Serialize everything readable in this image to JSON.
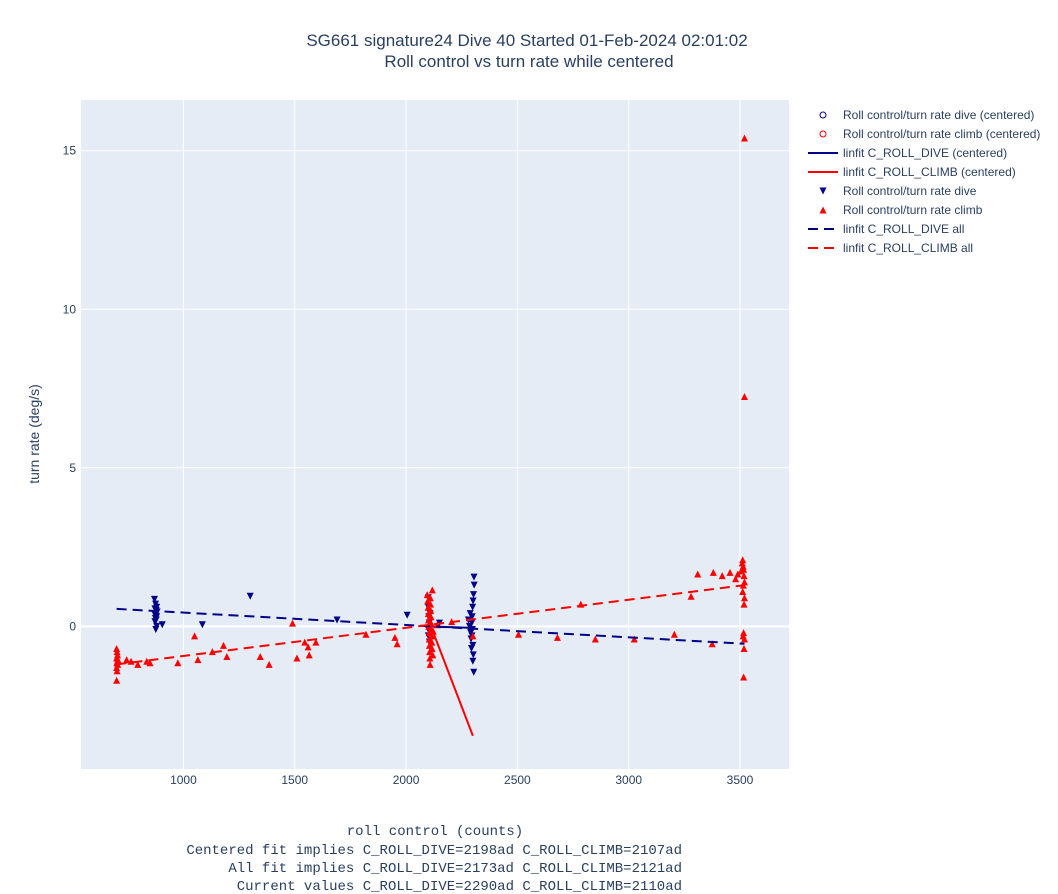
{
  "chart_data": {
    "type": "scatter",
    "title": "SG661 signature24 Dive 40 Started 01-Feb-2024 02:01:02",
    "subtitle": "Roll control vs turn rate while centered",
    "xlabel": "roll control (counts)",
    "xlabel_notes": [
      "Centered fit implies C_ROLL_DIVE=2198ad C_ROLL_CLIMB=2107ad",
      "All fit implies C_ROLL_DIVE=2173ad C_ROLL_CLIMB=2121ad",
      "Current values C_ROLL_DIVE=2290ad C_ROLL_CLIMB=2110ad"
    ],
    "ylabel": "turn rate (deg/s)",
    "xlim": [
      540,
      3720
    ],
    "ylim": [
      -4.5,
      16.6
    ],
    "xticks": [
      1000,
      1500,
      2000,
      2500,
      3000,
      3500
    ],
    "yticks": [
      0,
      5,
      10,
      15
    ],
    "grid": true,
    "legend_position": "top-right",
    "colors": {
      "plot_bg": "#e5ecf6",
      "grid": "#ffffff",
      "dive": "#00008b",
      "climb": "#ff0000"
    },
    "series": [
      {
        "name": "Roll control/turn rate dive (centered)",
        "kind": "marker",
        "marker": "circle-open",
        "color": "#00008b",
        "points": []
      },
      {
        "name": "Roll control/turn rate climb (centered)",
        "kind": "marker",
        "marker": "circle-open",
        "color": "#ff0000",
        "points": []
      },
      {
        "name": "linfit C_ROLL_DIVE (centered)",
        "kind": "line",
        "dash": "solid",
        "color": "#00008b",
        "points": [
          [
            2098,
            0.0
          ],
          [
            2298,
            -0.05
          ]
        ]
      },
      {
        "name": "linfit C_ROLL_CLIMB (centered)",
        "kind": "line",
        "dash": "solid",
        "color": "#ff0000",
        "points": [
          [
            2098,
            0.25
          ],
          [
            2300,
            -3.45
          ]
        ]
      },
      {
        "name": "Roll control/turn rate dive",
        "kind": "marker",
        "marker": "triangle-down",
        "color": "#00008b",
        "points": [
          [
            870,
            0.85
          ],
          [
            875,
            0.7
          ],
          [
            880,
            0.6
          ],
          [
            872,
            0.55
          ],
          [
            878,
            0.5
          ],
          [
            882,
            0.45
          ],
          [
            870,
            0.4
          ],
          [
            876,
            0.35
          ],
          [
            880,
            0.3
          ],
          [
            874,
            0.25
          ],
          [
            878,
            0.2
          ],
          [
            872,
            0.15
          ],
          [
            880,
            0.0
          ],
          [
            876,
            -0.1
          ],
          [
            905,
            0.05
          ],
          [
            1085,
            0.05
          ],
          [
            1300,
            0.95
          ],
          [
            1690,
            0.2
          ],
          [
            2005,
            0.35
          ],
          [
            2100,
            0.9
          ],
          [
            2100,
            0.6
          ],
          [
            2102,
            0.3
          ],
          [
            2104,
            0.1
          ],
          [
            2100,
            -0.1
          ],
          [
            2100,
            -0.3
          ],
          [
            2105,
            -0.5
          ],
          [
            2108,
            0.4
          ],
          [
            2150,
            0.1
          ],
          [
            2280,
            0.2
          ],
          [
            2285,
            0.0
          ],
          [
            2290,
            -0.2
          ],
          [
            2292,
            -0.4
          ],
          [
            2288,
            0.4
          ],
          [
            2295,
            0.1
          ],
          [
            2298,
            -0.1
          ],
          [
            2300,
            -0.6
          ],
          [
            2302,
            -0.9
          ],
          [
            2300,
            -1.1
          ],
          [
            2304,
            -1.45
          ],
          [
            2305,
            1.55
          ],
          [
            2306,
            1.3
          ],
          [
            2303,
            1.0
          ],
          [
            2301,
            0.8
          ],
          [
            2299,
            0.6
          ],
          [
            2297,
            0.3
          ],
          [
            2296,
            -0.3
          ],
          [
            2294,
            -0.7
          ]
        ]
      },
      {
        "name": "Roll control/turn rate climb",
        "kind": "marker",
        "marker": "triangle-up",
        "color": "#ff0000",
        "points": [
          [
            700,
            -0.7
          ],
          [
            702,
            -0.8
          ],
          [
            704,
            -0.9
          ],
          [
            700,
            -1.0
          ],
          [
            706,
            -1.05
          ],
          [
            703,
            -1.1
          ],
          [
            701,
            -1.15
          ],
          [
            705,
            -1.2
          ],
          [
            700,
            -1.3
          ],
          [
            702,
            -1.4
          ],
          [
            700,
            -1.7
          ],
          [
            745,
            -1.05
          ],
          [
            765,
            -1.1
          ],
          [
            795,
            -1.2
          ],
          [
            835,
            -1.1
          ],
          [
            850,
            -1.15
          ],
          [
            975,
            -1.15
          ],
          [
            1050,
            -0.3
          ],
          [
            1065,
            -1.05
          ],
          [
            1130,
            -0.8
          ],
          [
            1180,
            -0.6
          ],
          [
            1195,
            -0.95
          ],
          [
            1345,
            -0.95
          ],
          [
            1385,
            -1.2
          ],
          [
            1490,
            0.1
          ],
          [
            1510,
            -1.0
          ],
          [
            1545,
            -0.5
          ],
          [
            1560,
            -0.65
          ],
          [
            1565,
            -0.9
          ],
          [
            1595,
            -0.5
          ],
          [
            1820,
            -0.25
          ],
          [
            1950,
            -0.35
          ],
          [
            1960,
            -0.55
          ],
          [
            2095,
            1.0
          ],
          [
            2097,
            0.8
          ],
          [
            2099,
            0.6
          ],
          [
            2100,
            0.4
          ],
          [
            2101,
            0.2
          ],
          [
            2102,
            0.0
          ],
          [
            2103,
            -0.2
          ],
          [
            2104,
            -0.4
          ],
          [
            2105,
            -0.6
          ],
          [
            2106,
            -0.8
          ],
          [
            2107,
            -1.0
          ],
          [
            2108,
            -1.2
          ],
          [
            2109,
            0.9
          ],
          [
            2110,
            0.7
          ],
          [
            2111,
            0.5
          ],
          [
            2112,
            0.3
          ],
          [
            2113,
            0.1
          ],
          [
            2114,
            -0.1
          ],
          [
            2115,
            -0.3
          ],
          [
            2116,
            -0.5
          ],
          [
            2117,
            -0.7
          ],
          [
            2118,
            1.15
          ],
          [
            2120,
            -0.9
          ],
          [
            2122,
            -0.15
          ],
          [
            2140,
            0.05
          ],
          [
            2205,
            0.15
          ],
          [
            2300,
            -0.3
          ],
          [
            2505,
            -0.25
          ],
          [
            2680,
            -0.35
          ],
          [
            2785,
            0.7
          ],
          [
            2850,
            -0.4
          ],
          [
            3025,
            -0.4
          ],
          [
            3205,
            -0.25
          ],
          [
            3280,
            0.95
          ],
          [
            3310,
            1.65
          ],
          [
            3375,
            -0.55
          ],
          [
            3380,
            1.7
          ],
          [
            3420,
            1.6
          ],
          [
            3455,
            1.7
          ],
          [
            3480,
            1.5
          ],
          [
            3490,
            1.65
          ],
          [
            3505,
            1.75
          ],
          [
            3510,
            2.0
          ],
          [
            3512,
            2.1
          ],
          [
            3514,
            1.9
          ],
          [
            3516,
            1.8
          ],
          [
            3518,
            1.6
          ],
          [
            3520,
            1.4
          ],
          [
            3515,
            1.3
          ],
          [
            3512,
            1.1
          ],
          [
            3520,
            0.9
          ],
          [
            3518,
            0.7
          ],
          [
            3516,
            -0.2
          ],
          [
            3514,
            -0.3
          ],
          [
            3520,
            -0.4
          ],
          [
            3518,
            -0.7
          ],
          [
            3516,
            -1.6
          ],
          [
            3520,
            7.25
          ],
          [
            3520,
            15.4
          ]
        ]
      },
      {
        "name": "linfit C_ROLL_DIVE all",
        "kind": "line",
        "dash": "dash",
        "color": "#00008b",
        "points": [
          [
            700,
            0.55
          ],
          [
            3520,
            -0.55
          ]
        ]
      },
      {
        "name": "linfit C_ROLL_CLIMB all",
        "kind": "line",
        "dash": "dash",
        "color": "#ff0000",
        "points": [
          [
            700,
            -1.2
          ],
          [
            3520,
            1.3
          ]
        ]
      }
    ]
  }
}
